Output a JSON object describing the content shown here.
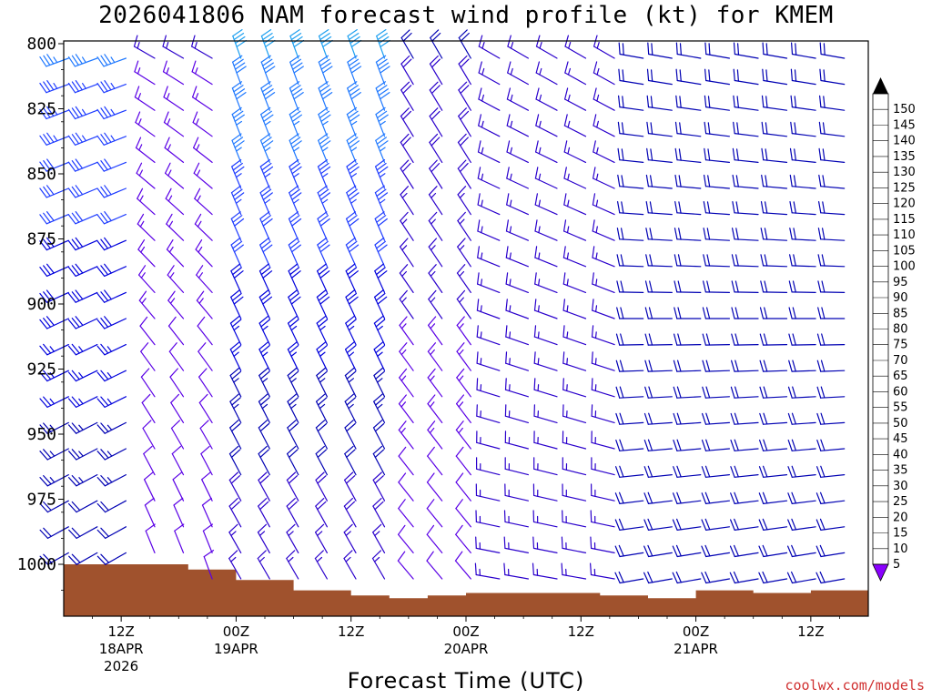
{
  "title": "2026041806 NAM forecast wind profile (kt) for KMEM",
  "xlabel": "Forecast Time (UTC)",
  "credit": "coolwx.com/models",
  "chart_data": {
    "type": "wind-barb-profile",
    "title": "2026041806 NAM forecast wind profile (kt) for KMEM",
    "xlabel": "Forecast Time (UTC)",
    "ylabel": "",
    "y_units": "hPa",
    "ylim": [
      1020,
      800
    ],
    "yticks": [
      800,
      825,
      850,
      875,
      900,
      925,
      950,
      975,
      1000
    ],
    "time_range_hours": [
      6,
      90
    ],
    "xticks": [
      {
        "hour": 12,
        "label": "12Z",
        "date": "18APR",
        "year": "2026"
      },
      {
        "hour": 24,
        "label": "00Z",
        "date": "19APR",
        "year": ""
      },
      {
        "hour": 36,
        "label": "12Z",
        "date": "",
        "year": ""
      },
      {
        "hour": 48,
        "label": "00Z",
        "date": "20APR",
        "year": ""
      },
      {
        "hour": 60,
        "label": "12Z",
        "date": "",
        "year": ""
      },
      {
        "hour": 72,
        "label": "00Z",
        "date": "21APR",
        "year": ""
      },
      {
        "hour": 84,
        "label": "12Z",
        "date": "",
        "year": ""
      }
    ],
    "colorbar": {
      "units": "kt",
      "values": [
        5,
        10,
        15,
        20,
        25,
        30,
        35,
        40,
        45,
        50,
        55,
        60,
        65,
        70,
        75,
        80,
        85,
        90,
        95,
        100,
        105,
        110,
        115,
        120,
        125,
        130,
        135,
        140,
        145,
        150
      ],
      "colors": [
        "#8a00ff",
        "#5a00e6",
        "#2a00cc",
        "#0000b3",
        "#0000dc",
        "#1e3cff",
        "#1e78ff",
        "#1ea0f0",
        "#14c8e6",
        "#00e6c8",
        "#00e696",
        "#00dc50",
        "#32e632",
        "#78f028",
        "#b4f028",
        "#e6f000",
        "#ffff00",
        "#ffe600",
        "#ffc800",
        "#ffaa00",
        "#ff9600",
        "#ff7800",
        "#ff5000",
        "#ff0000",
        "#ff0032",
        "#ff0064",
        "#ff0096",
        "#ff00c8",
        "#ff00ff",
        "#ff64ff"
      ]
    },
    "terrain_color": "#a0522d",
    "surface_pressure": [
      {
        "hour": 6,
        "hPa": 1000
      },
      {
        "hour": 15,
        "hPa": 1000
      },
      {
        "hour": 19,
        "hPa": 1002
      },
      {
        "hour": 24,
        "hPa": 1006
      },
      {
        "hour": 30,
        "hPa": 1010
      },
      {
        "hour": 36,
        "hPa": 1012
      },
      {
        "hour": 40,
        "hPa": 1013
      },
      {
        "hour": 44,
        "hPa": 1012
      },
      {
        "hour": 48,
        "hPa": 1011
      },
      {
        "hour": 56,
        "hPa": 1011
      },
      {
        "hour": 62,
        "hPa": 1012
      },
      {
        "hour": 67,
        "hPa": 1013
      },
      {
        "hour": 72,
        "hPa": 1010
      },
      {
        "hour": 78,
        "hPa": 1011
      },
      {
        "hour": 84,
        "hPa": 1010
      },
      {
        "hour": 90,
        "hPa": 1011
      }
    ],
    "wind_regimes": [
      {
        "hours": [
          6,
          14
        ],
        "top_speed_kt": 35,
        "surface_speed_kt": 20,
        "top_dir_deg": 250,
        "surface_dir_deg": 240
      },
      {
        "hours": [
          15,
          22
        ],
        "top_speed_kt": 15,
        "surface_speed_kt": 10,
        "top_dir_deg": 300,
        "surface_dir_deg": 340
      },
      {
        "hours": [
          22,
          40
        ],
        "top_speed_kt": 40,
        "surface_speed_kt": 15,
        "top_dir_deg": 340,
        "surface_dir_deg": 330
      },
      {
        "hours": [
          40,
          50
        ],
        "top_speed_kt": 20,
        "surface_speed_kt": 10,
        "top_dir_deg": 330,
        "surface_dir_deg": 320
      },
      {
        "hours": [
          50,
          66
        ],
        "top_speed_kt": 15,
        "surface_speed_kt": 15,
        "top_dir_deg": 300,
        "surface_dir_deg": 280
      },
      {
        "hours": [
          66,
          90
        ],
        "top_speed_kt": 20,
        "surface_speed_kt": 20,
        "top_dir_deg": 280,
        "surface_dir_deg": 260
      }
    ]
  }
}
